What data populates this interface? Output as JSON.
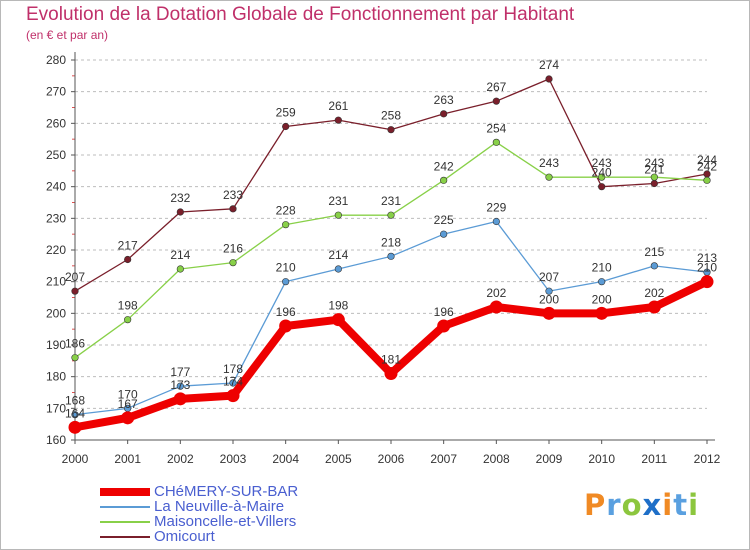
{
  "header": {
    "title": "Evolution de la Dotation Globale de Fonctionnement par Habitant",
    "subtitle": "(en € et par an)"
  },
  "logo": {
    "text": "Proxiti",
    "letters": [
      "P",
      "r",
      "o",
      "x",
      "i",
      "t",
      "i"
    ],
    "colors": [
      "#f08a24",
      "#5aa0e0",
      "#8cc63e",
      "#1e6fc8",
      "#f08a24",
      "#5aa0e0",
      "#8cc63e"
    ]
  },
  "chart_data": {
    "type": "line",
    "title": "Evolution de la Dotation Globale de Fonctionnement par Habitant",
    "subtitle": "(en € et par an)",
    "categories": [
      "2000",
      "2001",
      "2002",
      "2003",
      "2004",
      "2005",
      "2006",
      "2007",
      "2008",
      "2009",
      "2010",
      "2011",
      "2012"
    ],
    "ylim": [
      160,
      280
    ],
    "yticks": [
      160,
      170,
      180,
      190,
      200,
      210,
      220,
      230,
      240,
      250,
      260,
      270,
      280
    ],
    "grid": "horizontal dashed",
    "legend_position": "bottom-left",
    "series": [
      {
        "name": "Omicourt",
        "color": "#7a1f2b",
        "values": [
          207,
          217,
          232,
          233,
          259,
          261,
          258,
          263,
          267,
          274,
          240,
          241,
          244
        ]
      },
      {
        "name": "Maisoncelle-et-Villers",
        "color": "#88d048",
        "values": [
          186,
          198,
          214,
          216,
          228,
          231,
          231,
          242,
          254,
          243,
          243,
          243,
          242
        ]
      },
      {
        "name": "La Neuville-à-Maire",
        "color": "#5b9bd5",
        "values": [
          168,
          170,
          177,
          178,
          210,
          214,
          218,
          225,
          229,
          207,
          210,
          215,
          213
        ]
      },
      {
        "name": "CHéMERY-SUR-BAR",
        "color": "#ee0000",
        "values": [
          164,
          167,
          173,
          174,
          196,
          198,
          181,
          196,
          202,
          200,
          200,
          202,
          210
        ]
      }
    ],
    "data_labels": {
      "Omicourt": [
        "207",
        "217",
        "232",
        "233",
        "259",
        "261",
        "258",
        "263",
        "267",
        "274",
        "240",
        "241",
        "244"
      ],
      "Maisoncelle-et-Villers": [
        "186",
        "198",
        "214",
        "216",
        "228",
        "231",
        "231",
        "242",
        "254",
        "243",
        "243",
        "243",
        "242"
      ],
      "La Neuville-à-Maire": [
        "168",
        "170",
        "177",
        "178",
        "210",
        "214",
        "218",
        "225",
        "229",
        "207",
        "210",
        "215",
        "213"
      ],
      "CHéMERY-SUR-BAR": [
        "164",
        "167",
        "173",
        "174",
        "196",
        "198",
        "181",
        "196",
        "202",
        "200",
        "200",
        "202",
        "210"
      ]
    }
  },
  "legend": {
    "items": [
      {
        "label": "CHéMERY-SUR-BAR",
        "color": "#ee0000",
        "weight": "thick"
      },
      {
        "label": "La Neuville-à-Maire",
        "color": "#5b9bd5",
        "weight": "thin"
      },
      {
        "label": "Maisoncelle-et-Villers",
        "color": "#88d048",
        "weight": "thin"
      },
      {
        "label": "Omicourt",
        "color": "#7a1f2b",
        "weight": "thin"
      }
    ]
  }
}
